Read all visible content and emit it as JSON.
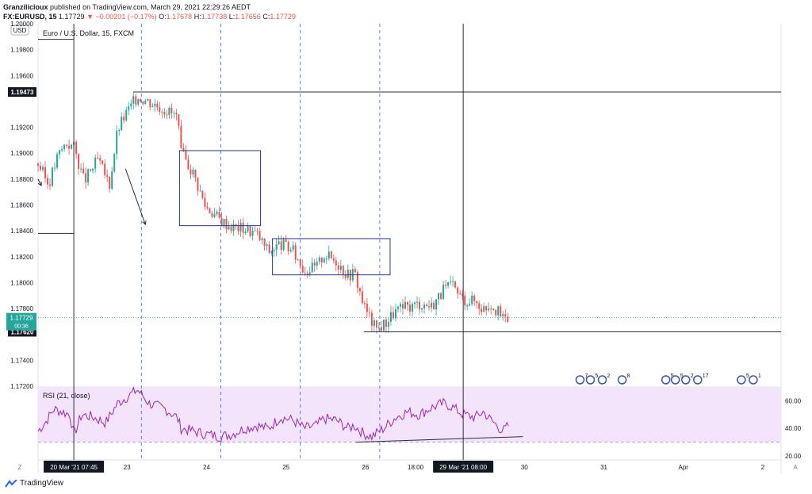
{
  "header": {
    "author": "Granzilicioux",
    "published": "published on TradingView.com, March 29, 2021 22:29:26 AEDT",
    "symbol": "FX:EURUSD, 15",
    "last": "1.17729",
    "change": "−0.00201 (−0.17%)",
    "o_label": "O:",
    "o": "1.17678",
    "h_label": "H:",
    "h": "1.17738",
    "l_label": "L:",
    "l": "1.17656",
    "c_label": "C:",
    "c": "1.17729"
  },
  "footer": {
    "brand": "TradingView"
  },
  "colors": {
    "up": "#26a69a",
    "down": "#ef5350",
    "rsi_line": "#9c27b0",
    "rsi_band": "#f3e3fb",
    "cycle_line": "#2962ff",
    "marker_line": "#2a2e39"
  },
  "chart_data": [
    {
      "type": "candlestick",
      "title": "Euro / U.S. Dollar, 15, FXCM",
      "currency": "USD",
      "ylim": [
        1.172,
        1.2
      ],
      "y_ticks": [
        "1.20000",
        "1.19800",
        "1.19600",
        "1.19200",
        "1.19000",
        "1.18800",
        "1.18600",
        "1.18400",
        "1.18200",
        "1.18000",
        "1.17800",
        "1.17400",
        "1.17200"
      ],
      "y_tick_values": [
        1.2,
        1.198,
        1.196,
        1.192,
        1.19,
        1.188,
        1.186,
        1.184,
        1.182,
        1.18,
        1.178,
        1.174,
        1.172
      ],
      "x_ticks": [
        {
          "label": "20 Mar '21  07:45",
          "t": 0.45,
          "highlight": true
        },
        {
          "label": "23",
          "t": 1.12
        },
        {
          "label": "24",
          "t": 2.12
        },
        {
          "label": "25",
          "t": 3.12
        },
        {
          "label": "26",
          "t": 4.12
        },
        {
          "label": "18:00",
          "t": 4.75
        },
        {
          "label": "29 Mar '21  08:00",
          "t": 5.35,
          "highlight": true
        },
        {
          "label": "30",
          "t": 6.12
        },
        {
          "label": "31",
          "t": 7.12
        },
        {
          "label": "Apr",
          "t": 8.12
        },
        {
          "label": "2",
          "t": 9.12
        }
      ],
      "t_range": [
        0,
        9.35
      ],
      "price_labels": [
        {
          "value": 1.19473,
          "text": "1.19473"
        },
        {
          "value": 1.1762,
          "text": "1.17620"
        }
      ],
      "current_price": {
        "value": 1.17729,
        "text": "1.17729",
        "countdown": "00:36"
      },
      "price_path": [
        [
          0.0,
          1.1892
        ],
        [
          0.13,
          1.1876
        ],
        [
          0.25,
          1.1898
        ],
        [
          0.35,
          1.1908
        ],
        [
          0.45,
          1.1905
        ],
        [
          0.58,
          1.1878
        ],
        [
          0.75,
          1.1895
        ],
        [
          0.9,
          1.1876
        ],
        [
          1.0,
          1.1918
        ],
        [
          1.1,
          1.193
        ],
        [
          1.25,
          1.1944
        ],
        [
          1.4,
          1.194
        ],
        [
          1.6,
          1.1934
        ],
        [
          1.75,
          1.1928
        ],
        [
          1.8,
          1.19
        ],
        [
          1.95,
          1.1885
        ],
        [
          2.1,
          1.186
        ],
        [
          2.3,
          1.1848
        ],
        [
          2.45,
          1.1843
        ],
        [
          2.6,
          1.1842
        ],
        [
          2.75,
          1.1838
        ],
        [
          2.9,
          1.1824
        ],
        [
          3.05,
          1.183
        ],
        [
          3.2,
          1.1825
        ],
        [
          3.35,
          1.181
        ],
        [
          3.5,
          1.1812
        ],
        [
          3.6,
          1.1822
        ],
        [
          3.75,
          1.1817
        ],
        [
          3.9,
          1.1806
        ],
        [
          3.98,
          1.1808
        ],
        [
          4.1,
          1.1782
        ],
        [
          4.25,
          1.1764
        ],
        [
          4.35,
          1.1768
        ],
        [
          4.5,
          1.1778
        ],
        [
          4.65,
          1.1781
        ],
        [
          4.8,
          1.1784
        ],
        [
          4.95,
          1.1782
        ],
        [
          5.1,
          1.1794
        ],
        [
          5.2,
          1.1798
        ],
        [
          5.35,
          1.1787
        ],
        [
          5.5,
          1.1786
        ],
        [
          5.6,
          1.178
        ],
        [
          5.7,
          1.1784
        ],
        [
          5.85,
          1.1772
        ],
        [
          5.92,
          1.1773
        ]
      ],
      "horizontal_lines": [
        {
          "value": 1.19473,
          "t_start": 1.2,
          "t_end": 9.35
        },
        {
          "value": 1.1762,
          "t_start": 4.1,
          "t_end": 9.35
        },
        {
          "value": 1.1988,
          "t_start": 0.0,
          "t_end": 0.45
        },
        {
          "value": 1.1838,
          "t_start": 0.0,
          "t_end": 0.45
        }
      ],
      "rectangles": [
        {
          "t0": 1.78,
          "t1": 2.8,
          "y0": 1.1844,
          "y1": 1.1902
        },
        {
          "t0": 2.95,
          "t1": 4.43,
          "y0": 1.1806,
          "y1": 1.1834
        }
      ],
      "cycle_lines_t": [
        1.3,
        2.3,
        3.3,
        4.3
      ],
      "marker_lines_t": [
        0.45,
        5.35
      ],
      "arrows": [
        {
          "from": [
            1.1,
            1.1888
          ],
          "to": [
            1.35,
            1.1845
          ]
        },
        {
          "from": [
            0.0,
            1.188
          ],
          "to": [
            0.04,
            1.1875
          ]
        }
      ],
      "event_icons": [
        {
          "t": 6.82,
          "label": "7"
        },
        {
          "t": 6.95,
          "label": "5"
        },
        {
          "t": 7.1,
          "label": "2"
        },
        {
          "t": 7.35,
          "label": "8"
        },
        {
          "t": 7.9,
          "label": "5"
        },
        {
          "t": 8.02,
          "label": "5"
        },
        {
          "t": 8.15,
          "label": "2"
        },
        {
          "t": 8.3,
          "label": "17"
        },
        {
          "t": 8.85,
          "label": "5"
        },
        {
          "t": 9.0,
          "label": "1"
        }
      ]
    },
    {
      "type": "line",
      "title": "RSI (21, close)",
      "ylim": [
        20,
        70
      ],
      "y_ticks": [
        "60.00",
        "40.00",
        "20.00"
      ],
      "y_tick_values": [
        60,
        40,
        20
      ],
      "band": [
        30,
        70
      ],
      "series": [
        {
          "values": [
            [
              0.0,
              38
            ],
            [
              0.1,
              45
            ],
            [
              0.2,
              54
            ],
            [
              0.3,
              52
            ],
            [
              0.4,
              50
            ],
            [
              0.45,
              35
            ],
            [
              0.55,
              50
            ],
            [
              0.7,
              48
            ],
            [
              0.85,
              44
            ],
            [
              1.0,
              58
            ],
            [
              1.1,
              62
            ],
            [
              1.25,
              68
            ],
            [
              1.4,
              58
            ],
            [
              1.6,
              54
            ],
            [
              1.75,
              48
            ],
            [
              1.8,
              40
            ],
            [
              1.95,
              38
            ],
            [
              2.1,
              36
            ],
            [
              2.3,
              34
            ],
            [
              2.45,
              36
            ],
            [
              2.6,
              40
            ],
            [
              2.75,
              42
            ],
            [
              2.9,
              40
            ],
            [
              3.05,
              48
            ],
            [
              3.2,
              46
            ],
            [
              3.35,
              40
            ],
            [
              3.5,
              42
            ],
            [
              3.6,
              47
            ],
            [
              3.75,
              46
            ],
            [
              3.9,
              40
            ],
            [
              3.98,
              42
            ],
            [
              4.1,
              36
            ],
            [
              4.2,
              34
            ],
            [
              4.35,
              40
            ],
            [
              4.5,
              48
            ],
            [
              4.65,
              52
            ],
            [
              4.8,
              50
            ],
            [
              4.95,
              55
            ],
            [
              5.1,
              58
            ],
            [
              5.2,
              56
            ],
            [
              5.35,
              50
            ],
            [
              5.5,
              48
            ],
            [
              5.6,
              52
            ],
            [
              5.7,
              46
            ],
            [
              5.85,
              38
            ],
            [
              5.92,
              42
            ]
          ]
        }
      ],
      "trendline": {
        "from": [
          4.0,
          30
        ],
        "to": [
          6.1,
          34
        ]
      }
    }
  ]
}
